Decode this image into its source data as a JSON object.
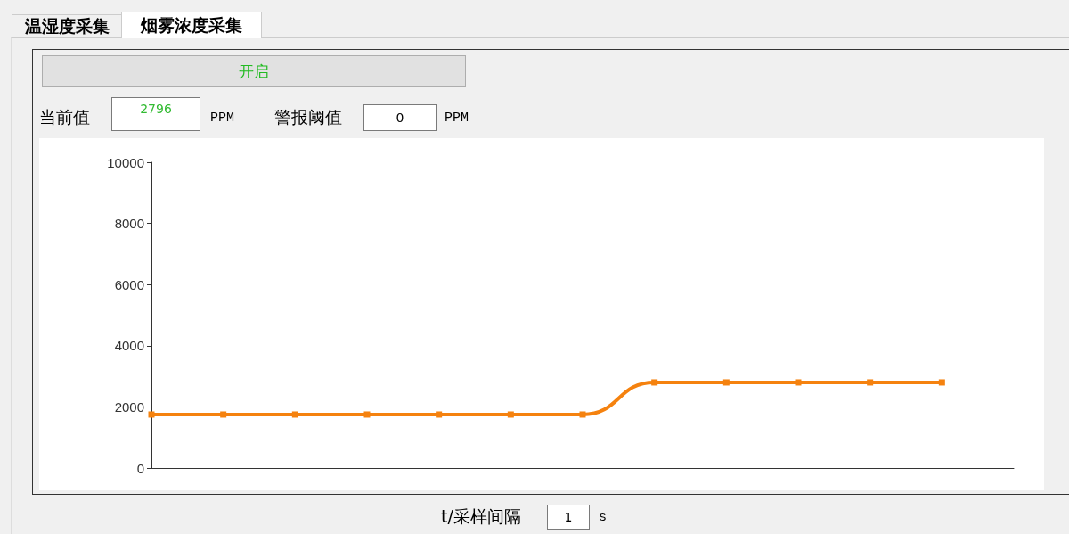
{
  "chart_data": {
    "type": "line",
    "categories": [
      null,
      null,
      null,
      null,
      null,
      null,
      null,
      null,
      null,
      null,
      null,
      null,
      null
    ],
    "series": [
      {
        "color": "#f5820f",
        "values": [
          1750,
          1750,
          1750,
          1750,
          1750,
          1750,
          1750,
          2800,
          2800,
          2800,
          2800,
          2800,
          null
        ]
      }
    ],
    "ylim": [
      0,
      10000
    ],
    "yticks": [
      0,
      2000,
      4000,
      6000,
      8000,
      10000
    ],
    "grid": false,
    "marker": "square",
    "line_style": "solid",
    "tick_labels": "y",
    "annotations": [
      "温湿度采集",
      "烟雾浓度采集",
      "开启",
      "当前值",
      "2796",
      "PPM",
      "警报阈值",
      "0",
      "PPM",
      "t/采样间隔",
      "1",
      "s"
    ]
  }
}
